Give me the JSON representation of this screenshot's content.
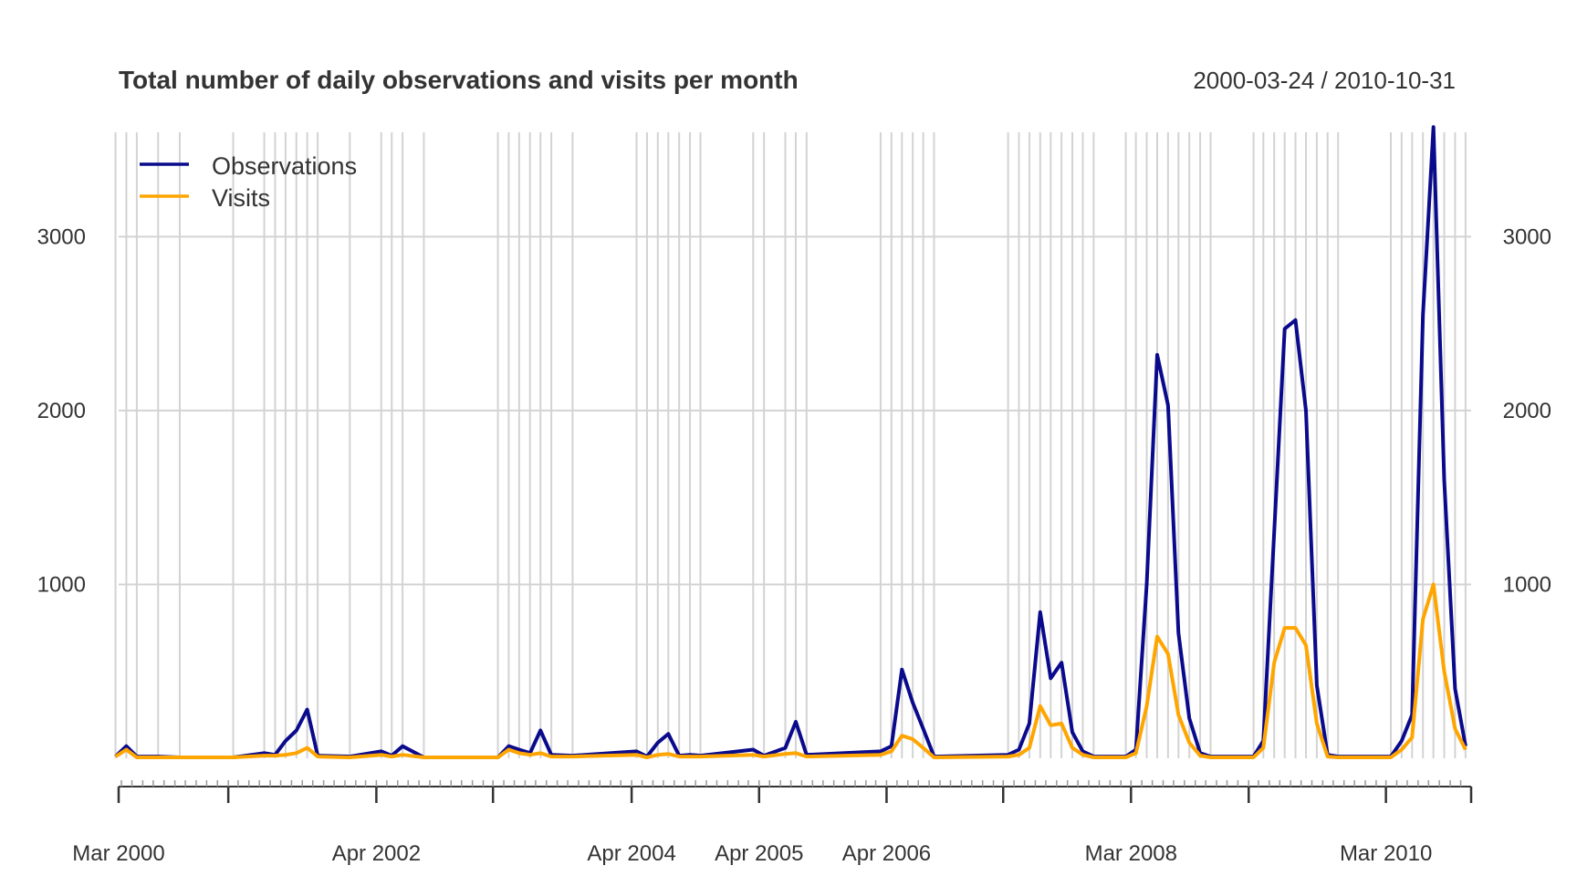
{
  "chart_data": {
    "type": "line",
    "title": "Total number of daily observations and visits per month",
    "date_range_label": "2000-03-24 / 2010-10-31",
    "xlabel": "",
    "ylabel": "",
    "ylim": [
      0,
      3600
    ],
    "y_ticks": [
      1000,
      2000,
      3000
    ],
    "grid": true,
    "legend_position": "top-left",
    "x_tick_labels": [
      {
        "date": "2000-03",
        "label": "Mar 2000"
      },
      {
        "date": "2002-04",
        "label": "Apr 2002"
      },
      {
        "date": "2004-04",
        "label": "Apr 2004"
      },
      {
        "date": "2005-04",
        "label": "Apr 2005"
      },
      {
        "date": "2006-04",
        "label": "Apr 2006"
      },
      {
        "date": "2008-03",
        "label": "Mar 2008"
      },
      {
        "date": "2010-03",
        "label": "Mar 2010"
      }
    ],
    "x_major_ticks": [
      "2000-03",
      "2001-02",
      "2002-04",
      "2003-03",
      "2004-04",
      "2005-04",
      "2006-04",
      "2007-03",
      "2008-03",
      "2009-02",
      "2010-03",
      "2010-10"
    ],
    "series": [
      {
        "name": "Observations",
        "color": "#0a0a8c",
        "points": [
          [
            "2000-03",
            10
          ],
          [
            "2000-04",
            70
          ],
          [
            "2000-05",
            10
          ],
          [
            "2000-07",
            10
          ],
          [
            "2000-09",
            5
          ],
          [
            "2001-02",
            5
          ],
          [
            "2001-05",
            30
          ],
          [
            "2001-06",
            20
          ],
          [
            "2001-07",
            100
          ],
          [
            "2001-08",
            160
          ],
          [
            "2001-09",
            280
          ],
          [
            "2001-10",
            15
          ],
          [
            "2002-01",
            10
          ],
          [
            "2002-04",
            40
          ],
          [
            "2002-05",
            15
          ],
          [
            "2002-06",
            70
          ],
          [
            "2002-08",
            5
          ],
          [
            "2003-03",
            5
          ],
          [
            "2003-04",
            70
          ],
          [
            "2003-05",
            50
          ],
          [
            "2003-06",
            30
          ],
          [
            "2003-07",
            160
          ],
          [
            "2003-08",
            20
          ],
          [
            "2003-10",
            15
          ],
          [
            "2004-04",
            40
          ],
          [
            "2004-05",
            10
          ],
          [
            "2004-06",
            90
          ],
          [
            "2004-07",
            140
          ],
          [
            "2004-08",
            15
          ],
          [
            "2004-09",
            20
          ],
          [
            "2004-10",
            15
          ],
          [
            "2005-03",
            50
          ],
          [
            "2005-04",
            15
          ],
          [
            "2005-06",
            60
          ],
          [
            "2005-07",
            210
          ],
          [
            "2005-08",
            20
          ],
          [
            "2006-03",
            40
          ],
          [
            "2006-04",
            70
          ],
          [
            "2006-05",
            510
          ],
          [
            "2006-06",
            320
          ],
          [
            "2006-07",
            170
          ],
          [
            "2006-08",
            10
          ],
          [
            "2007-03",
            20
          ],
          [
            "2007-04",
            50
          ],
          [
            "2007-05",
            200
          ],
          [
            "2007-06",
            840
          ],
          [
            "2007-07",
            460
          ],
          [
            "2007-08",
            550
          ],
          [
            "2007-09",
            150
          ],
          [
            "2007-10",
            40
          ],
          [
            "2007-11",
            10
          ],
          [
            "2008-02",
            10
          ],
          [
            "2008-03",
            50
          ],
          [
            "2008-04",
            1000
          ],
          [
            "2008-05",
            2320
          ],
          [
            "2008-06",
            2030
          ],
          [
            "2008-07",
            720
          ],
          [
            "2008-08",
            230
          ],
          [
            "2008-09",
            30
          ],
          [
            "2008-10",
            10
          ],
          [
            "2009-02",
            10
          ],
          [
            "2009-03",
            100
          ],
          [
            "2009-04",
            1300
          ],
          [
            "2009-05",
            2470
          ],
          [
            "2009-06",
            2520
          ],
          [
            "2009-07",
            2000
          ],
          [
            "2009-08",
            420
          ],
          [
            "2009-09",
            20
          ],
          [
            "2009-10",
            10
          ],
          [
            "2010-03",
            10
          ],
          [
            "2010-04",
            100
          ],
          [
            "2010-05",
            250
          ],
          [
            "2010-06",
            2550
          ],
          [
            "2010-07",
            3630
          ],
          [
            "2010-08",
            1600
          ],
          [
            "2010-09",
            400
          ],
          [
            "2010-10",
            70
          ]
        ]
      },
      {
        "name": "Visits",
        "color": "#ffa500",
        "points": [
          [
            "2000-03",
            10
          ],
          [
            "2000-04",
            50
          ],
          [
            "2000-05",
            5
          ],
          [
            "2000-07",
            5
          ],
          [
            "2000-09",
            5
          ],
          [
            "2001-02",
            5
          ],
          [
            "2001-05",
            15
          ],
          [
            "2001-06",
            15
          ],
          [
            "2001-07",
            20
          ],
          [
            "2001-08",
            30
          ],
          [
            "2001-09",
            60
          ],
          [
            "2001-10",
            10
          ],
          [
            "2002-01",
            5
          ],
          [
            "2002-04",
            20
          ],
          [
            "2002-05",
            10
          ],
          [
            "2002-06",
            20
          ],
          [
            "2002-08",
            5
          ],
          [
            "2003-03",
            5
          ],
          [
            "2003-04",
            50
          ],
          [
            "2003-05",
            30
          ],
          [
            "2003-06",
            20
          ],
          [
            "2003-07",
            30
          ],
          [
            "2003-08",
            10
          ],
          [
            "2003-10",
            10
          ],
          [
            "2004-04",
            20
          ],
          [
            "2004-05",
            5
          ],
          [
            "2004-06",
            20
          ],
          [
            "2004-07",
            25
          ],
          [
            "2004-08",
            10
          ],
          [
            "2004-09",
            10
          ],
          [
            "2004-10",
            10
          ],
          [
            "2005-03",
            20
          ],
          [
            "2005-04",
            10
          ],
          [
            "2005-06",
            25
          ],
          [
            "2005-07",
            30
          ],
          [
            "2005-08",
            10
          ],
          [
            "2006-03",
            20
          ],
          [
            "2006-04",
            40
          ],
          [
            "2006-05",
            130
          ],
          [
            "2006-06",
            110
          ],
          [
            "2006-07",
            60
          ],
          [
            "2006-08",
            5
          ],
          [
            "2007-03",
            10
          ],
          [
            "2007-04",
            20
          ],
          [
            "2007-05",
            60
          ],
          [
            "2007-06",
            300
          ],
          [
            "2007-07",
            190
          ],
          [
            "2007-08",
            200
          ],
          [
            "2007-09",
            60
          ],
          [
            "2007-10",
            20
          ],
          [
            "2007-11",
            5
          ],
          [
            "2008-02",
            5
          ],
          [
            "2008-03",
            30
          ],
          [
            "2008-04",
            300
          ],
          [
            "2008-05",
            700
          ],
          [
            "2008-06",
            600
          ],
          [
            "2008-07",
            250
          ],
          [
            "2008-08",
            90
          ],
          [
            "2008-09",
            15
          ],
          [
            "2008-10",
            5
          ],
          [
            "2009-02",
            5
          ],
          [
            "2009-03",
            60
          ],
          [
            "2009-04",
            550
          ],
          [
            "2009-05",
            750
          ],
          [
            "2009-06",
            750
          ],
          [
            "2009-07",
            650
          ],
          [
            "2009-08",
            200
          ],
          [
            "2009-09",
            10
          ],
          [
            "2009-10",
            5
          ],
          [
            "2010-03",
            5
          ],
          [
            "2010-04",
            50
          ],
          [
            "2010-05",
            120
          ],
          [
            "2010-06",
            800
          ],
          [
            "2010-07",
            1000
          ],
          [
            "2010-08",
            500
          ],
          [
            "2010-09",
            170
          ],
          [
            "2010-10",
            50
          ]
        ]
      }
    ]
  }
}
